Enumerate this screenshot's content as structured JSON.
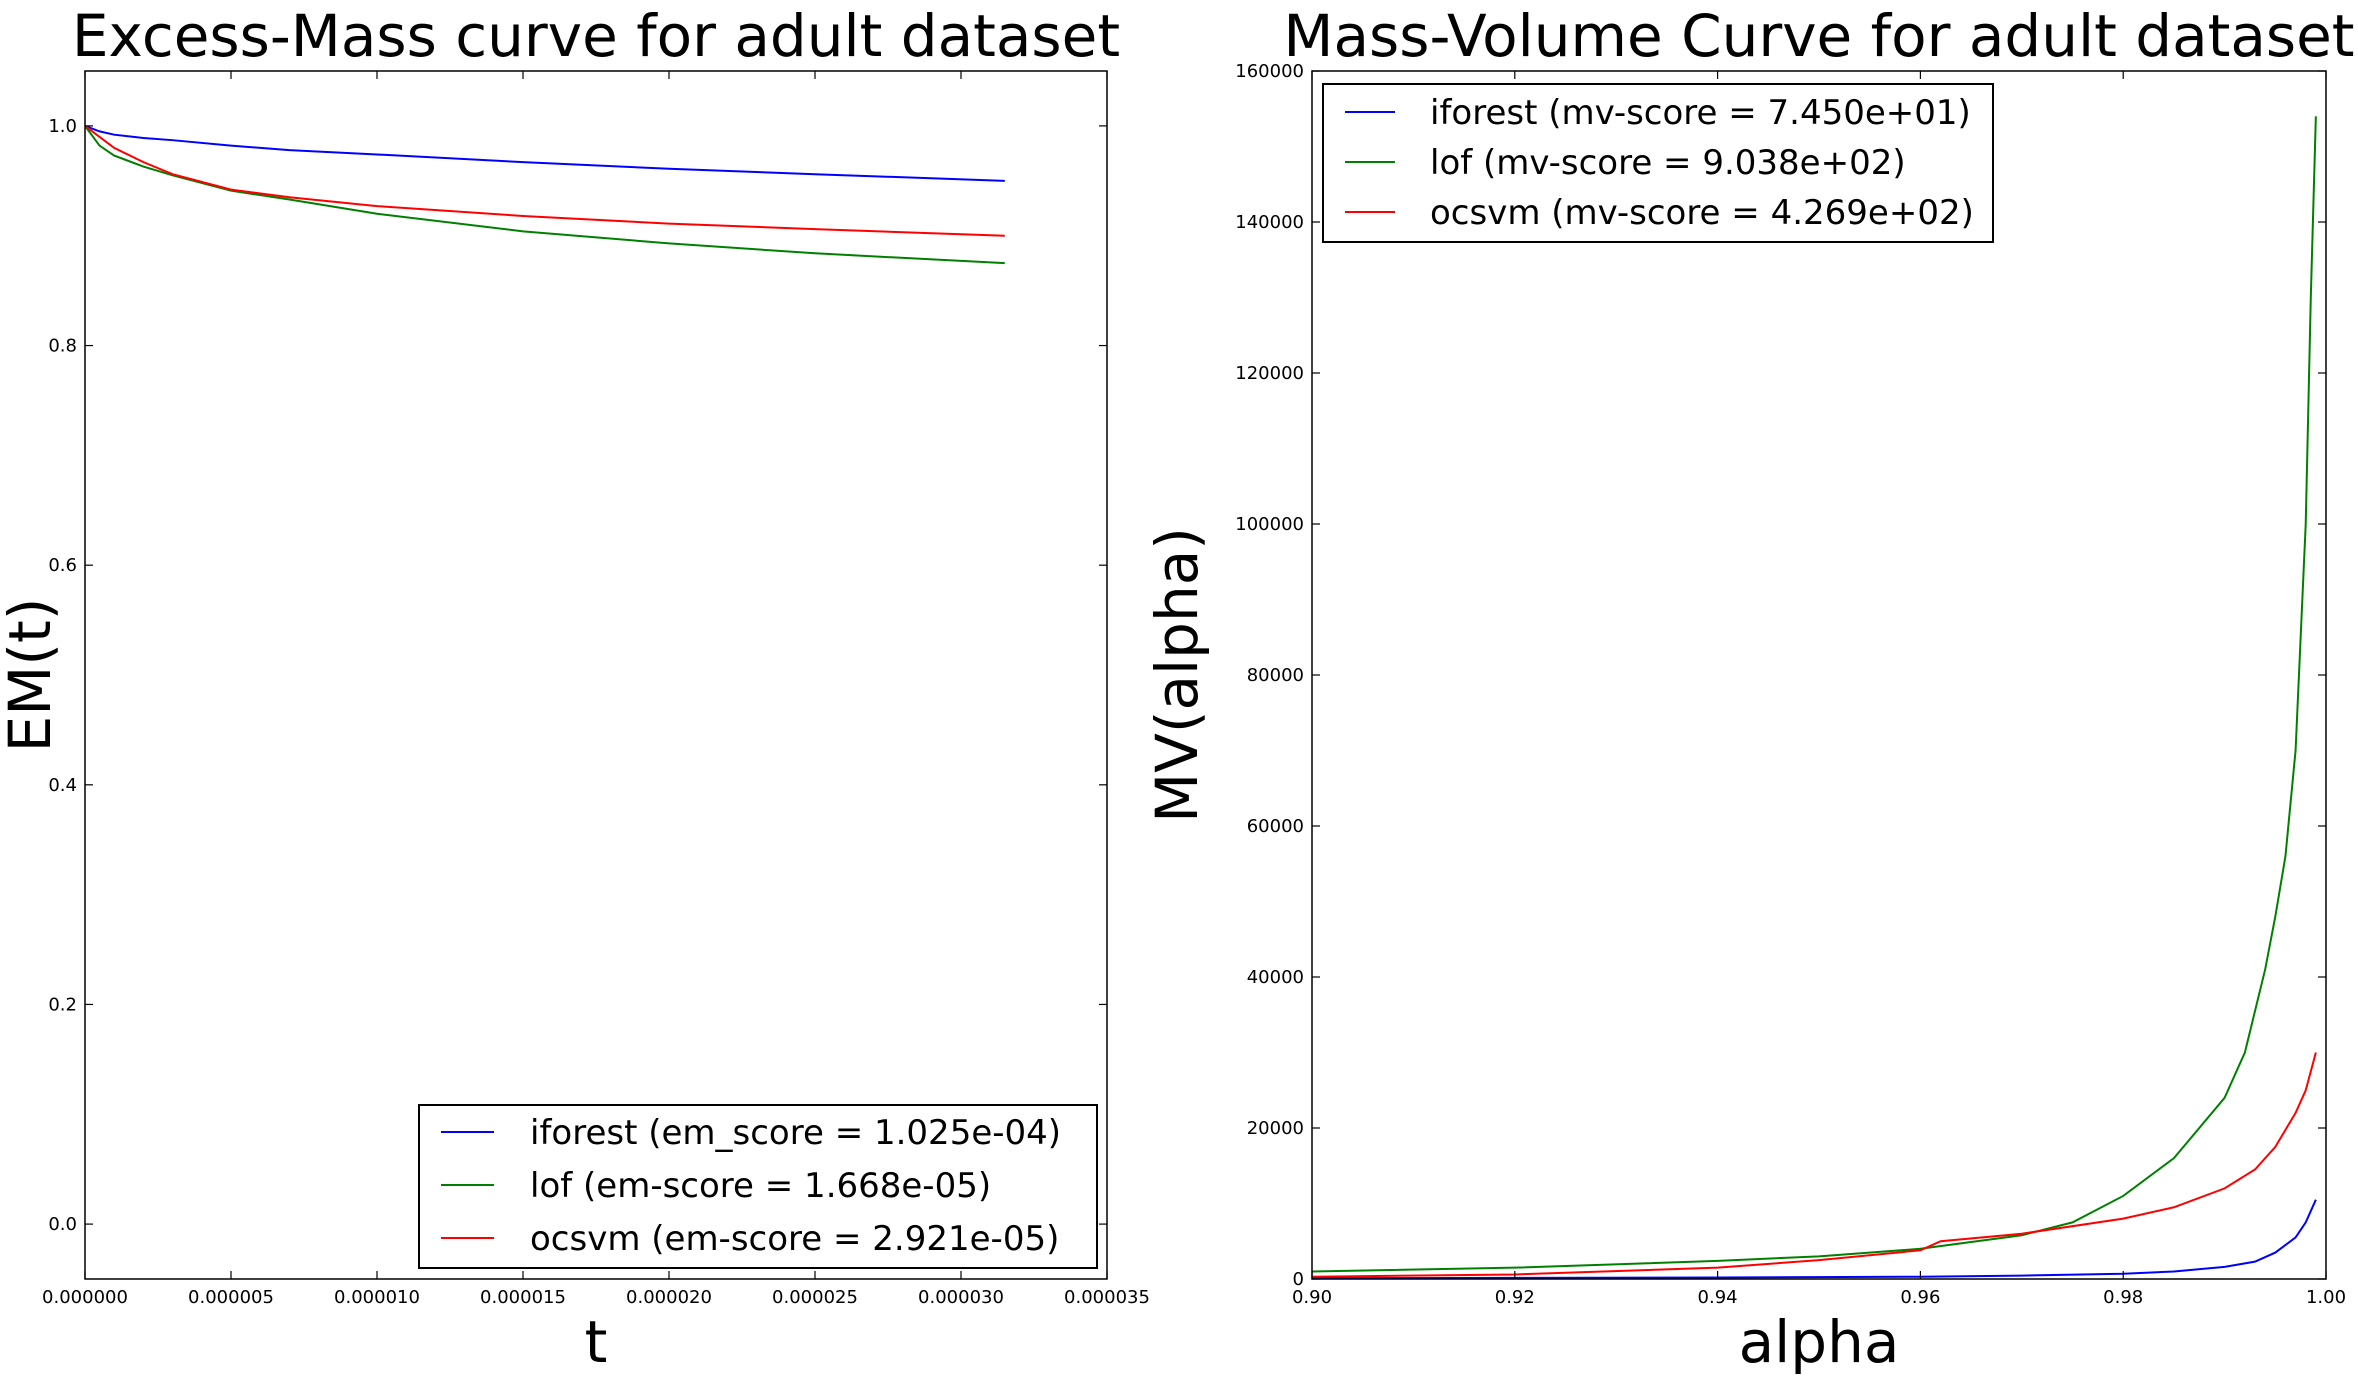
{
  "chart_data": [
    {
      "type": "line",
      "title": "Excess-Mass curve for adult dataset",
      "xlabel": "t",
      "ylabel": "EM(t)",
      "xlim": [
        0,
        3.5e-05
      ],
      "ylim": [
        -0.05,
        1.05
      ],
      "x_ticks": [
        "0.000000",
        "0.000005",
        "0.000010",
        "0.000015",
        "0.000020",
        "0.000025",
        "0.000030",
        "0.000035"
      ],
      "x_tick_values": [
        0,
        5e-06,
        1e-05,
        1.5e-05,
        2e-05,
        2.5e-05,
        3e-05,
        3.5e-05
      ],
      "y_ticks": [
        "0.0",
        "0.2",
        "0.4",
        "0.6",
        "0.8",
        "1.0"
      ],
      "y_tick_values": [
        0,
        0.2,
        0.4,
        0.6,
        0.8,
        1.0
      ],
      "grid": false,
      "legend_position": "lower-right",
      "series": [
        {
          "name": "iforest (em_score = 1.025e-04)",
          "color": "#0000ff",
          "x": [
            0,
            5e-07,
            1e-06,
            2e-06,
            3e-06,
            5e-06,
            7e-06,
            1e-05,
            1.5e-05,
            2e-05,
            2.5e-05,
            3.15e-05
          ],
          "y": [
            1.0,
            0.995,
            0.992,
            0.989,
            0.987,
            0.982,
            0.978,
            0.974,
            0.967,
            0.961,
            0.956,
            0.95
          ]
        },
        {
          "name": "lof (em-score = 1.668e-05)",
          "color": "#008000",
          "x": [
            0,
            5e-07,
            1e-06,
            2e-06,
            3e-06,
            5e-06,
            7e-06,
            1e-05,
            1.5e-05,
            2e-05,
            2.5e-05,
            3.15e-05
          ],
          "y": [
            1.0,
            0.982,
            0.973,
            0.963,
            0.955,
            0.941,
            0.933,
            0.92,
            0.904,
            0.893,
            0.884,
            0.875
          ]
        },
        {
          "name": "ocsvm (em-score = 2.921e-05)",
          "color": "#ff0000",
          "x": [
            0,
            5e-07,
            1e-06,
            2e-06,
            3e-06,
            5e-06,
            7e-06,
            1e-05,
            1.5e-05,
            2e-05,
            2.5e-05,
            3.15e-05
          ],
          "y": [
            1.0,
            0.99,
            0.98,
            0.967,
            0.956,
            0.942,
            0.935,
            0.927,
            0.918,
            0.911,
            0.906,
            0.9
          ]
        }
      ]
    },
    {
      "type": "line",
      "title": "Mass-Volume Curve for adult dataset",
      "xlabel": "alpha",
      "ylabel": "MV(alpha)",
      "xlim": [
        0.9,
        1.0
      ],
      "ylim": [
        0,
        160000
      ],
      "x_ticks": [
        "0.90",
        "0.92",
        "0.94",
        "0.96",
        "0.98",
        "1.00"
      ],
      "x_tick_values": [
        0.9,
        0.92,
        0.94,
        0.96,
        0.98,
        1.0
      ],
      "y_ticks": [
        "0",
        "20000",
        "40000",
        "60000",
        "80000",
        "100000",
        "120000",
        "140000",
        "160000"
      ],
      "y_tick_values": [
        0,
        20000,
        40000,
        60000,
        80000,
        100000,
        120000,
        140000,
        160000
      ],
      "grid": false,
      "legend_position": "upper-left",
      "series": [
        {
          "name": "iforest (mv-score = 7.450e+01)",
          "color": "#0000ff",
          "x": [
            0.9,
            0.92,
            0.94,
            0.96,
            0.97,
            0.98,
            0.985,
            0.99,
            0.993,
            0.995,
            0.997,
            0.998,
            0.999
          ],
          "y": [
            100,
            150,
            200,
            300,
            450,
            700,
            1000,
            1600,
            2300,
            3500,
            5500,
            7500,
            10500
          ]
        },
        {
          "name": "lof (mv-score = 9.038e+02)",
          "color": "#008000",
          "x": [
            0.9,
            0.92,
            0.94,
            0.95,
            0.96,
            0.97,
            0.975,
            0.98,
            0.985,
            0.99,
            0.992,
            0.994,
            0.995,
            0.996,
            0.997,
            0.9975,
            0.998,
            0.9985,
            0.999
          ],
          "y": [
            1000,
            1500,
            2400,
            3000,
            4000,
            5800,
            7500,
            11000,
            16000,
            24000,
            30000,
            41000,
            48000,
            56000,
            70000,
            85000,
            100000,
            130000,
            154000
          ]
        },
        {
          "name": "ocsvm (mv-score = 4.269e+02)",
          "color": "#ff0000",
          "x": [
            0.9,
            0.92,
            0.94,
            0.95,
            0.96,
            0.962,
            0.97,
            0.98,
            0.985,
            0.99,
            0.993,
            0.995,
            0.997,
            0.998,
            0.999
          ],
          "y": [
            300,
            600,
            1500,
            2500,
            3800,
            5000,
            6000,
            8000,
            9500,
            12000,
            14500,
            17500,
            22000,
            25000,
            30000
          ]
        }
      ]
    }
  ]
}
